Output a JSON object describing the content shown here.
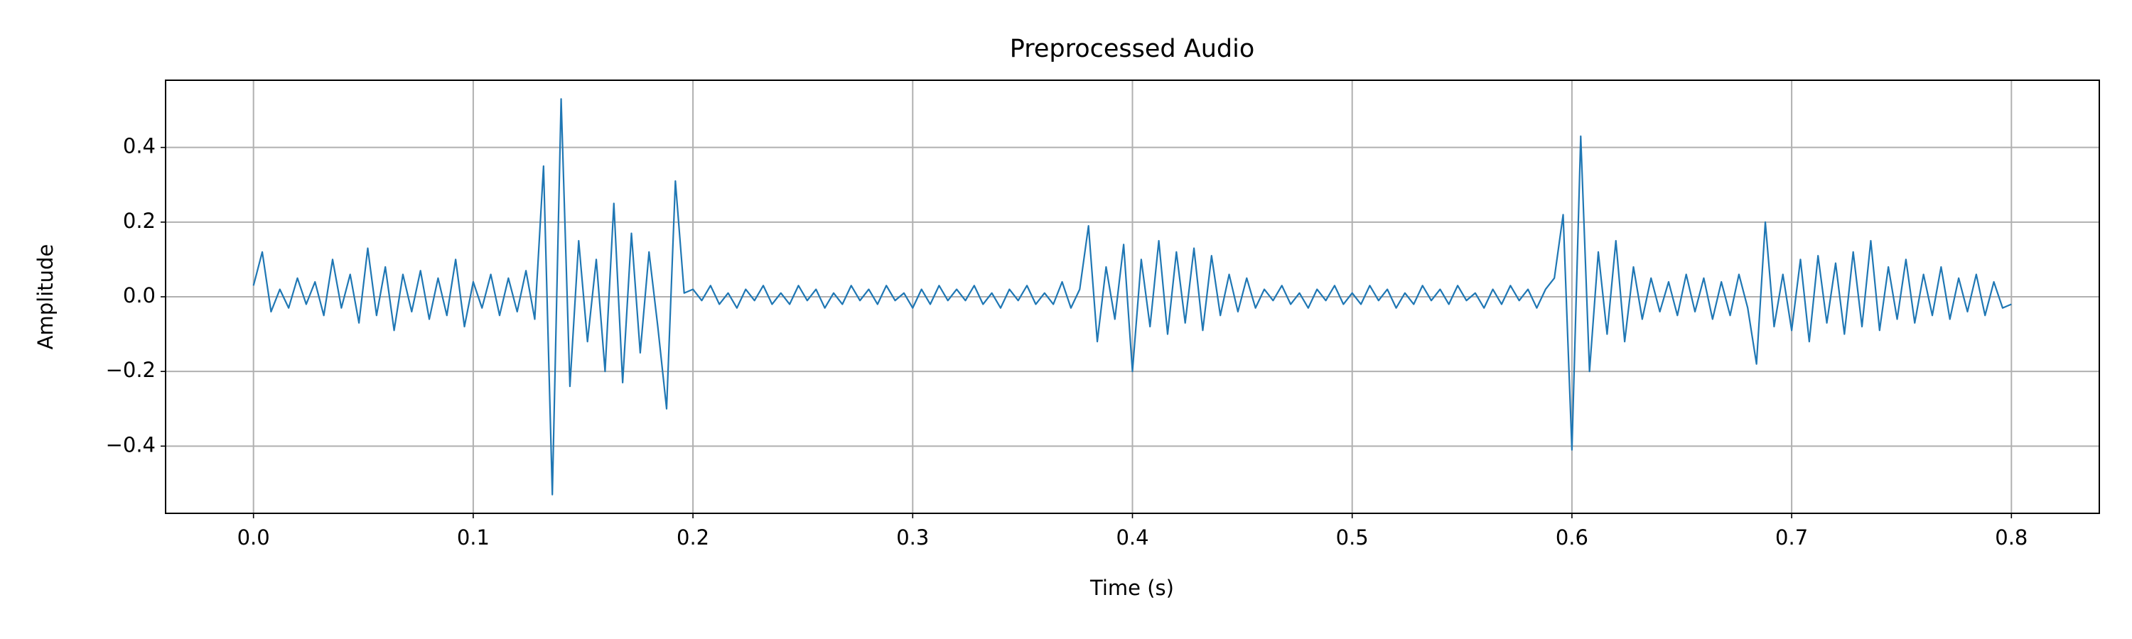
{
  "chart_data": {
    "type": "line",
    "title": "Preprocessed Audio",
    "xlabel": "Time (s)",
    "ylabel": "Amplitude",
    "color": "#1f77b4",
    "grid": true,
    "xlim": [
      -0.04,
      0.84
    ],
    "ylim": [
      -0.58,
      0.58
    ],
    "xticks": [
      {
        "value": 0,
        "label": "0.0"
      },
      0.1,
      0.2,
      0.3,
      0.4,
      0.5,
      0.6,
      0.7,
      0.8
    ],
    "yticks": [
      {
        "value": -0.4,
        "label": "−0.4"
      },
      {
        "value": -0.2,
        "label": "−0.2"
      },
      {
        "value": 0,
        "label": "0.0"
      },
      0.2,
      0.4
    ],
    "x": [
      0,
      0.004,
      0.008,
      0.012,
      0.016,
      0.02,
      0.024,
      0.028,
      0.032,
      0.036,
      0.04,
      0.044,
      0.048,
      0.052,
      0.056,
      0.06,
      0.064,
      0.068,
      0.072,
      0.076,
      0.08,
      0.084,
      0.088,
      0.092,
      0.096,
      0.1,
      0.104,
      0.108,
      0.112,
      0.116,
      0.12,
      0.124,
      0.128,
      0.132,
      0.136,
      0.14,
      0.144,
      0.148,
      0.152,
      0.156,
      0.16,
      0.164,
      0.168,
      0.172,
      0.176,
      0.18,
      0.184,
      0.188,
      0.192,
      0.196,
      0.2,
      0.204,
      0.208,
      0.212,
      0.216,
      0.22,
      0.224,
      0.228,
      0.232,
      0.236,
      0.24,
      0.244,
      0.248,
      0.252,
      0.256,
      0.26,
      0.264,
      0.268,
      0.272,
      0.276,
      0.28,
      0.284,
      0.288,
      0.292,
      0.296,
      0.3,
      0.304,
      0.308,
      0.312,
      0.316,
      0.32,
      0.324,
      0.328,
      0.332,
      0.336,
      0.34,
      0.344,
      0.348,
      0.352,
      0.356,
      0.36,
      0.364,
      0.368,
      0.372,
      0.376,
      0.38,
      0.384,
      0.388,
      0.392,
      0.396,
      0.4,
      0.404,
      0.408,
      0.412,
      0.416,
      0.42,
      0.424,
      0.428,
      0.432,
      0.436,
      0.44,
      0.444,
      0.448,
      0.452,
      0.456,
      0.46,
      0.464,
      0.468,
      0.472,
      0.476,
      0.48,
      0.484,
      0.488,
      0.492,
      0.496,
      0.5,
      0.504,
      0.508,
      0.512,
      0.516,
      0.52,
      0.524,
      0.528,
      0.532,
      0.536,
      0.54,
      0.544,
      0.548,
      0.552,
      0.556,
      0.56,
      0.564,
      0.568,
      0.572,
      0.576,
      0.58,
      0.584,
      0.588,
      0.592,
      0.596,
      0.6,
      0.604,
      0.608,
      0.612,
      0.616,
      0.62,
      0.624,
      0.628,
      0.632,
      0.636,
      0.64,
      0.644,
      0.648,
      0.652,
      0.656,
      0.66,
      0.664,
      0.668,
      0.672,
      0.676,
      0.68,
      0.684,
      0.688,
      0.692,
      0.696,
      0.7,
      0.704,
      0.708,
      0.712,
      0.716,
      0.72,
      0.724,
      0.728,
      0.732,
      0.736,
      0.74,
      0.744,
      0.748,
      0.752,
      0.756,
      0.76,
      0.764,
      0.768,
      0.772,
      0.776,
      0.78,
      0.784,
      0.788,
      0.792,
      0.796,
      0.8
    ],
    "values": [
      0.03,
      0.12,
      -0.04,
      0.02,
      -0.03,
      0.05,
      -0.02,
      0.04,
      -0.05,
      0.1,
      -0.03,
      0.06,
      -0.07,
      0.13,
      -0.05,
      0.08,
      -0.09,
      0.06,
      -0.04,
      0.07,
      -0.06,
      0.05,
      -0.05,
      0.1,
      -0.08,
      0.04,
      -0.03,
      0.06,
      -0.05,
      0.05,
      -0.04,
      0.07,
      -0.06,
      0.35,
      -0.53,
      0.53,
      -0.24,
      0.15,
      -0.12,
      0.1,
      -0.2,
      0.25,
      -0.23,
      0.17,
      -0.15,
      0.12,
      -0.08,
      -0.3,
      0.31,
      0.01,
      0.02,
      -0.01,
      0.03,
      -0.02,
      0.01,
      -0.03,
      0.02,
      -0.01,
      0.03,
      -0.02,
      0.01,
      -0.02,
      0.03,
      -0.01,
      0.02,
      -0.03,
      0.01,
      -0.02,
      0.03,
      -0.01,
      0.02,
      -0.02,
      0.03,
      -0.01,
      0.01,
      -0.03,
      0.02,
      -0.02,
      0.03,
      -0.01,
      0.02,
      -0.01,
      0.03,
      -0.02,
      0.01,
      -0.03,
      0.02,
      -0.01,
      0.03,
      -0.02,
      0.01,
      -0.02,
      0.04,
      -0.03,
      0.02,
      0.19,
      -0.12,
      0.08,
      -0.06,
      0.14,
      -0.2,
      0.1,
      -0.08,
      0.15,
      -0.1,
      0.12,
      -0.07,
      0.13,
      -0.09,
      0.11,
      -0.05,
      0.06,
      -0.04,
      0.05,
      -0.03,
      0.02,
      -0.01,
      0.03,
      -0.02,
      0.01,
      -0.03,
      0.02,
      -0.01,
      0.03,
      -0.02,
      0.01,
      -0.02,
      0.03,
      -0.01,
      0.02,
      -0.03,
      0.01,
      -0.02,
      0.03,
      -0.01,
      0.02,
      -0.02,
      0.03,
      -0.01,
      0.01,
      -0.03,
      0.02,
      -0.02,
      0.03,
      -0.01,
      0.02,
      -0.03,
      0.02,
      0.05,
      0.22,
      -0.41,
      0.43,
      -0.2,
      0.12,
      -0.1,
      0.15,
      -0.12,
      0.08,
      -0.06,
      0.05,
      -0.04,
      0.04,
      -0.05,
      0.06,
      -0.04,
      0.05,
      -0.06,
      0.04,
      -0.05,
      0.06,
      -0.03,
      -0.18,
      0.2,
      -0.08,
      0.06,
      -0.09,
      0.1,
      -0.12,
      0.11,
      -0.07,
      0.09,
      -0.1,
      0.12,
      -0.08,
      0.15,
      -0.09,
      0.08,
      -0.06,
      0.1,
      -0.07,
      0.06,
      -0.05,
      0.08,
      -0.06,
      0.05,
      -0.04,
      0.06,
      -0.05,
      0.04,
      -0.03,
      -0.02
    ]
  }
}
